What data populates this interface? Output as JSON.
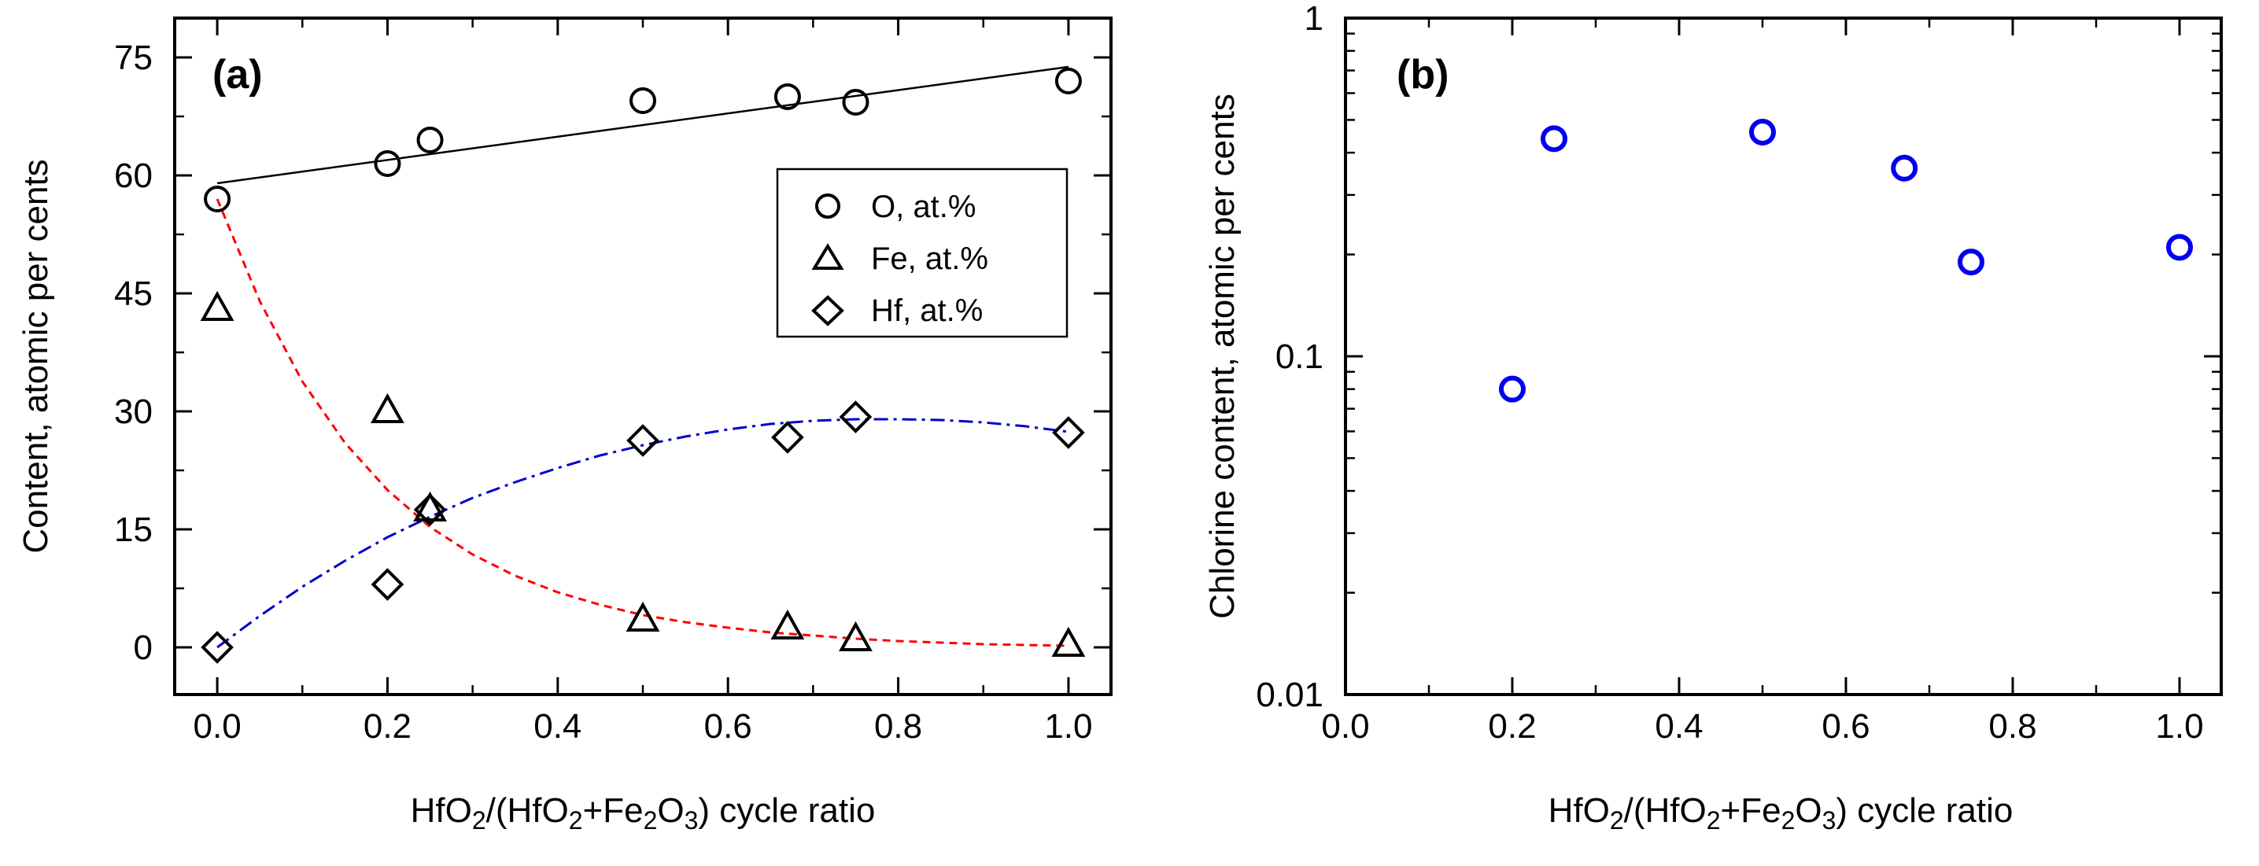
{
  "chart_data": [
    {
      "panel": "(a)",
      "type": "scatter",
      "xlabel": "HfO2/(HfO2+Fe2O3) cycle ratio",
      "ylabel": "Content, atomic per cents",
      "xlim": [
        -0.05,
        1.05
      ],
      "ylim": [
        -6,
        80
      ],
      "xticks": [
        "0.0",
        "0.2",
        "0.4",
        "0.6",
        "0.8",
        "1.0"
      ],
      "yticks": [
        "0",
        "15",
        "30",
        "45",
        "60",
        "75"
      ],
      "legend_position": "top-right",
      "series": [
        {
          "name": "O, at.%",
          "marker": "circle",
          "color": "#000000",
          "x": [
            0.0,
            0.2,
            0.25,
            0.5,
            0.67,
            0.75,
            1.0
          ],
          "y": [
            57.0,
            61.5,
            64.5,
            69.5,
            70.0,
            69.3,
            72.0
          ]
        },
        {
          "name": "Fe, at.%",
          "marker": "triangle",
          "color": "#000000",
          "x": [
            0.0,
            0.2,
            0.25,
            0.5,
            0.67,
            0.75,
            1.0
          ],
          "y": [
            43.0,
            30.0,
            17.5,
            3.5,
            2.5,
            1.0,
            0.3
          ]
        },
        {
          "name": "Hf, at.%",
          "marker": "diamond",
          "color": "#000000",
          "x": [
            0.0,
            0.2,
            0.25,
            0.5,
            0.67,
            0.75,
            1.0
          ],
          "y": [
            0.0,
            8.0,
            17.5,
            26.3,
            26.7,
            29.3,
            27.3
          ]
        }
      ],
      "fits": [
        {
          "style": "solid",
          "color": "#000000",
          "x": [
            0.0,
            1.0
          ],
          "y": [
            59.0,
            73.8
          ]
        },
        {
          "style": "dashed",
          "color": "#ff0000",
          "x": [
            0.0,
            0.05,
            0.1,
            0.15,
            0.2,
            0.25,
            0.3,
            0.35,
            0.4,
            0.45,
            0.5,
            0.55,
            0.6,
            0.65,
            0.7,
            0.75,
            0.8,
            0.85,
            0.9,
            0.95,
            1.0
          ],
          "y": [
            57.0,
            44.0,
            33.8,
            26.0,
            20.0,
            15.3,
            11.8,
            9.1,
            7.0,
            5.4,
            4.1,
            3.2,
            2.5,
            1.9,
            1.5,
            1.1,
            0.8,
            0.6,
            0.4,
            0.3,
            0.2
          ]
        },
        {
          "style": "dashdot",
          "color": "#0000cc",
          "x": [
            0.0,
            0.05,
            0.1,
            0.15,
            0.2,
            0.25,
            0.3,
            0.35,
            0.4,
            0.45,
            0.5,
            0.55,
            0.6,
            0.65,
            0.7,
            0.75,
            0.8,
            0.85,
            0.9,
            0.95,
            1.0
          ],
          "y": [
            0.0,
            4.0,
            7.7,
            11.0,
            14.0,
            16.6,
            19.0,
            21.0,
            22.8,
            24.4,
            25.7,
            26.8,
            27.7,
            28.4,
            28.8,
            29.0,
            29.0,
            28.9,
            28.6,
            28.1,
            27.4
          ]
        }
      ]
    },
    {
      "panel": "(b)",
      "type": "scatter",
      "xlabel": "HfO2/(HfO2+Fe2O3) cycle ratio",
      "ylabel": "Chlorine content, atomic per cents",
      "yscale": "log",
      "xlim": [
        0.0,
        1.05
      ],
      "ylim": [
        0.01,
        1
      ],
      "xticks": [
        "0.0",
        "0.2",
        "0.4",
        "0.6",
        "0.8",
        "1.0"
      ],
      "yticks": [
        "0.01",
        "0.1",
        "1"
      ],
      "series": [
        {
          "name": "Cl",
          "marker": "circle",
          "color": "#0000ee",
          "x": [
            0.2,
            0.25,
            0.5,
            0.67,
            0.75,
            1.0
          ],
          "y": [
            0.08,
            0.44,
            0.46,
            0.36,
            0.19,
            0.21
          ]
        }
      ]
    }
  ]
}
